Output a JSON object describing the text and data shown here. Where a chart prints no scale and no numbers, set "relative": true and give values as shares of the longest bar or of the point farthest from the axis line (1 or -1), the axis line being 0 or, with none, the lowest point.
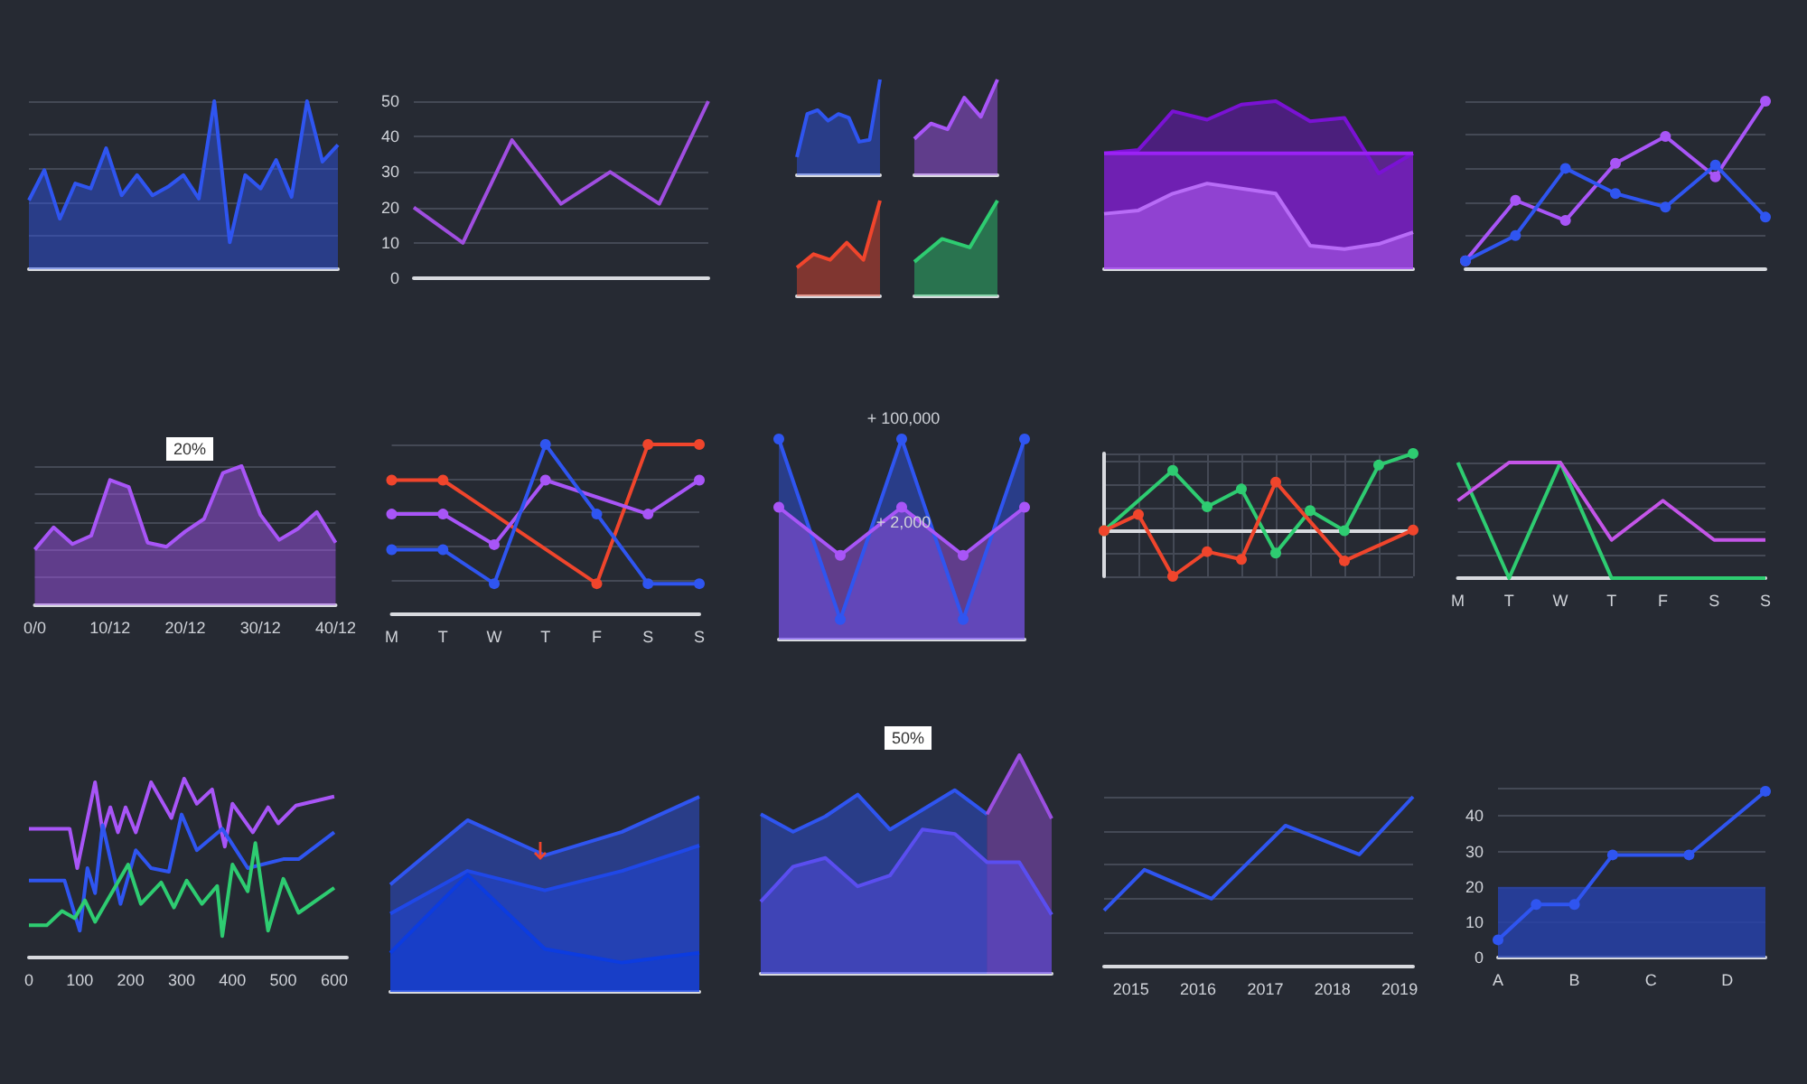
{
  "chart_data": [
    {
      "type": "area",
      "relative": true,
      "categories": [
        null,
        null,
        null,
        null,
        null,
        null,
        null,
        null,
        null,
        null,
        null,
        null,
        null,
        null,
        null,
        null,
        null,
        null,
        null,
        null,
        null
      ],
      "color": "#2f55f0",
      "values": [
        0.41,
        0.59,
        0.3,
        0.51,
        0.48,
        0.72,
        0.44,
        0.56,
        0.44,
        0.49,
        0.56,
        0.42,
        1,
        0.16,
        0.56,
        0.48,
        0.65,
        0.43,
        1,
        0.64,
        0.74
      ],
      "grid": "y"
    },
    {
      "type": "line",
      "categories": [
        null,
        null,
        null,
        null,
        null,
        null,
        null
      ],
      "color": "#a04ee0",
      "values": [
        20,
        10,
        39,
        21,
        30,
        21,
        50
      ],
      "ylim": [
        0,
        50
      ],
      "yticks": [
        0,
        10,
        20,
        30,
        40,
        50
      ],
      "grid": "y"
    },
    {
      "type": "area",
      "relative": true,
      "categories": [
        null,
        null,
        null,
        null,
        null,
        null,
        null,
        null,
        null
      ],
      "color": "#2f55f0",
      "values": [
        0.19,
        0.64,
        0.68,
        0.57,
        0.64,
        0.6,
        0.35,
        0.37,
        1
      ]
    },
    {
      "type": "area",
      "relative": true,
      "categories": [
        null,
        null,
        null,
        null,
        null,
        null
      ],
      "color": "#a855f7",
      "values": [
        0.38,
        0.54,
        0.48,
        0.81,
        0.61,
        1
      ]
    },
    {
      "type": "area",
      "relative": true,
      "categories": [
        null,
        null,
        null,
        null,
        null,
        null
      ],
      "color": "#f0452c",
      "values": [
        0.3,
        0.44,
        0.38,
        0.56,
        0.38,
        1
      ]
    },
    {
      "type": "area",
      "relative": true,
      "categories": [
        null,
        null,
        null,
        null
      ],
      "color": "#2ecc71",
      "values": [
        0.36,
        0.6,
        0.51,
        1
      ]
    },
    {
      "type": "area",
      "relative": true,
      "categories": [
        null,
        null,
        null,
        null,
        null,
        null,
        null,
        null,
        null,
        null
      ],
      "series": [
        {
          "color": "#7a12d4",
          "values": [
            0.69,
            0.71,
            0.94,
            0.89,
            0.98,
            1,
            0.88,
            0.9,
            0.57,
            0.69
          ]
        },
        {
          "color": "#9b22f5",
          "values": [
            0.69,
            0.69,
            0.69,
            0.69,
            0.69,
            0.69,
            0.69,
            0.69,
            0.69,
            0.69
          ]
        },
        {
          "color": "#b86cf7",
          "values": [
            0.33,
            0.35,
            0.45,
            0.51,
            0.48,
            0.45,
            0.14,
            0.12,
            0.15,
            0.22
          ]
        }
      ]
    },
    {
      "type": "line",
      "relative": true,
      "categories": [
        null,
        null,
        null,
        null,
        null,
        null,
        null
      ],
      "grid": "y",
      "marker": "circle",
      "series": [
        {
          "color": "#a855f7",
          "values": [
            0.05,
            0.41,
            0.29,
            0.63,
            0.79,
            0.55,
            1
          ]
        },
        {
          "color": "#2f55f0",
          "values": [
            0.05,
            0.2,
            0.6,
            0.45,
            0.37,
            0.62,
            0.31
          ]
        }
      ]
    },
    {
      "type": "area",
      "relative": true,
      "categories": [
        "0/0",
        null,
        null,
        null,
        "10/12",
        null,
        null,
        null,
        "20/12",
        null,
        null,
        null,
        "30/12",
        null,
        null,
        null,
        "40/12"
      ],
      "color": "#a855f7",
      "values": [
        0.4,
        0.56,
        0.44,
        0.5,
        0.9,
        0.85,
        0.45,
        0.42,
        0.53,
        0.62,
        0.95,
        1,
        0.65,
        0.47,
        0.55,
        0.67,
        0.45
      ],
      "grid": "y",
      "annotations": [
        "20%"
      ]
    },
    {
      "type": "line",
      "relative": true,
      "categories": [
        "M",
        "T",
        "W",
        "T",
        "F",
        "S",
        "S"
      ],
      "grid": "y",
      "marker": "circle",
      "series": [
        {
          "color": "#f0452c",
          "values": [
            0.79,
            0.79,
            null,
            null,
            0.18,
            1,
            1
          ]
        },
        {
          "color": "#a855f7",
          "values": [
            0.59,
            0.59,
            0.41,
            0.79,
            null,
            0.59,
            0.79
          ]
        },
        {
          "color": "#2f55f0",
          "values": [
            0.38,
            0.38,
            0.18,
            1,
            0.59,
            0.18,
            0.18
          ]
        }
      ]
    },
    {
      "type": "area",
      "relative": true,
      "categories": [
        null,
        null,
        null,
        null,
        null
      ],
      "marker": "circle",
      "annotations": [
        "+ 100,000",
        "+ 2,000"
      ],
      "series": [
        {
          "color": "#2f55f0",
          "values": [
            1,
            0.1,
            1,
            0.1,
            1
          ]
        },
        {
          "color": "#a855f7",
          "values": [
            0.66,
            0.42,
            0.66,
            0.42,
            0.66
          ]
        }
      ]
    },
    {
      "type": "line",
      "relative": true,
      "categories": [
        null,
        null,
        null,
        null,
        null,
        null,
        null,
        null,
        null,
        null
      ],
      "grid": true,
      "marker": "circle",
      "series": [
        {
          "color": "#2ecc71",
          "values": [
            0,
            null,
            0.78,
            0.31,
            0.54,
            -0.29,
            0.26,
            0,
            0.85,
            1
          ]
        },
        {
          "color": "#f0452c",
          "values": [
            0,
            0.21,
            -0.59,
            -0.27,
            -0.37,
            0.63,
            null,
            -0.39,
            null,
            0.01
          ]
        }
      ]
    },
    {
      "type": "line",
      "relative": true,
      "categories": [
        "M",
        "T",
        "W",
        "T",
        "F",
        "S",
        "S"
      ],
      "grid": "y",
      "series": [
        {
          "color": "#2ecc71",
          "values": [
            1,
            0,
            1,
            0,
            0,
            0,
            0
          ]
        },
        {
          "color": "#c455e8",
          "values": [
            0.67,
            1,
            1,
            0.33,
            0.67,
            0.33,
            0.33
          ]
        }
      ]
    },
    {
      "type": "line",
      "relative": true,
      "xlim": [
        0,
        625
      ],
      "xticks": [
        0,
        100,
        200,
        300,
        400,
        500,
        600
      ],
      "series": [
        {
          "color": "#a855f7",
          "x": [
            0,
            80,
            95,
            130,
            145,
            160,
            175,
            190,
            210,
            240,
            280,
            305,
            330,
            360,
            385,
            400,
            440,
            470,
            490,
            525,
            600
          ],
          "values": [
            0.72,
            0.72,
            0.5,
            0.98,
            0.7,
            0.84,
            0.7,
            0.84,
            0.7,
            0.98,
            0.78,
            1,
            0.86,
            0.94,
            0.62,
            0.86,
            0.7,
            0.84,
            0.75,
            0.85,
            0.9
          ]
        },
        {
          "color": "#2f55f0",
          "x": [
            0,
            70,
            100,
            115,
            130,
            145,
            180,
            210,
            240,
            275,
            300,
            330,
            380,
            430,
            500,
            530,
            600
          ],
          "values": [
            0.43,
            0.43,
            0.15,
            0.5,
            0.36,
            0.74,
            0.3,
            0.6,
            0.5,
            0.48,
            0.8,
            0.6,
            0.72,
            0.5,
            0.55,
            0.55,
            0.7
          ]
        },
        {
          "color": "#2ecc71",
          "x": [
            0,
            35,
            65,
            90,
            110,
            130,
            195,
            220,
            260,
            285,
            310,
            340,
            370,
            380,
            400,
            430,
            445,
            470,
            500,
            530,
            600
          ],
          "values": [
            0.18,
            0.18,
            0.26,
            0.22,
            0.32,
            0.2,
            0.52,
            0.3,
            0.42,
            0.28,
            0.43,
            0.3,
            0.4,
            0.12,
            0.52,
            0.37,
            0.64,
            0.15,
            0.44,
            0.25,
            0.39
          ]
        }
      ]
    },
    {
      "type": "area",
      "relative": true,
      "categories": [
        null,
        null,
        null,
        null,
        null
      ],
      "series": [
        {
          "color": "#2f55f0",
          "values": [
            0.55,
            0.88,
            0.7,
            0.82,
            1
          ]
        },
        {
          "color": "#1f48e8",
          "values": [
            0.4,
            0.62,
            0.52,
            0.62,
            0.75
          ]
        },
        {
          "color": "#0c3ce0",
          "values": [
            0.2,
            0.6,
            0.22,
            0.15,
            0.2
          ]
        }
      ]
    },
    {
      "type": "area",
      "relative": true,
      "categories": [
        null,
        null,
        null,
        null,
        null,
        null,
        null,
        null,
        null,
        null
      ],
      "annotations": [
        "50%"
      ],
      "series": [
        {
          "color": "#2f55f0",
          "values": [
            0.73,
            0.65,
            0.72,
            0.82,
            0.66,
            0.75,
            0.84,
            0.73,
            null,
            null
          ]
        },
        {
          "color": "#9b4fe0",
          "values": [
            null,
            null,
            null,
            null,
            null,
            null,
            null,
            0.73,
            1,
            0.71
          ]
        },
        {
          "color": "#5a4ef0",
          "values": [
            0.33,
            0.49,
            0.53,
            0.4,
            0.45,
            0.66,
            0.64,
            0.51,
            0.51,
            0.27
          ]
        }
      ]
    },
    {
      "type": "line",
      "relative": true,
      "xlim": [
        2014.6,
        2019.2
      ],
      "xticks": [
        2015,
        2016,
        2017,
        2018,
        2019
      ],
      "x": [
        2014.6,
        2015.2,
        2016.2,
        2017.3,
        2018.4,
        2019.2
      ],
      "color": "#2f55f0",
      "values": [
        0.33,
        0.57,
        0.4,
        0.83,
        0.66,
        1
      ],
      "grid": "y"
    },
    {
      "type": "line",
      "categories": [
        "A",
        null,
        "B",
        null,
        "C",
        null,
        "D",
        null
      ],
      "color": "#2f55f0",
      "values": [
        5,
        15,
        15,
        29,
        null,
        29,
        null,
        47
      ],
      "ylim": [
        0,
        48
      ],
      "yticks": [
        0,
        10,
        20,
        30,
        40
      ],
      "grid": "y",
      "marker": "circle",
      "bands": [
        {
          "axis": "y",
          "from": 0,
          "to": 20,
          "color": "#2741a8"
        }
      ]
    }
  ]
}
